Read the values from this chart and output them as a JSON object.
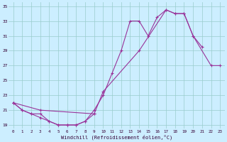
{
  "bg_color": "#cceeff",
  "grid_color": "#99cccc",
  "line_color": "#993399",
  "xlim": [
    -0.5,
    23.5
  ],
  "ylim": [
    18.5,
    35.5
  ],
  "xticks": [
    0,
    1,
    2,
    3,
    4,
    5,
    6,
    7,
    8,
    9,
    10,
    11,
    12,
    13,
    14,
    15,
    16,
    17,
    18,
    19,
    20,
    21,
    22,
    23
  ],
  "yticks": [
    19,
    21,
    23,
    25,
    27,
    29,
    31,
    33,
    35
  ],
  "xlabel": "Windchill (Refroidissement éolien,°C)",
  "series": [
    {
      "x": [
        0,
        1,
        2,
        3,
        4,
        5,
        6,
        7,
        8,
        9,
        10,
        11,
        12,
        13,
        14,
        15,
        16,
        17,
        18,
        19,
        20,
        21
      ],
      "y": [
        22.0,
        21.0,
        20.5,
        20.5,
        19.5,
        19.0,
        19.0,
        19.0,
        19.5,
        21.0,
        23.0,
        26.0,
        29.0,
        33.0,
        33.0,
        31.0,
        33.5,
        34.5,
        34.0,
        34.0,
        31.0,
        29.5
      ]
    },
    {
      "x": [
        0,
        1,
        2,
        3,
        4,
        5,
        6,
        7,
        8,
        9
      ],
      "y": [
        22.0,
        21.0,
        20.5,
        20.0,
        19.5,
        19.0,
        19.0,
        19.0,
        19.5,
        20.5
      ]
    },
    {
      "x": [
        0,
        3,
        9,
        10,
        14,
        17,
        18,
        19,
        20,
        22,
        23
      ],
      "y": [
        22.0,
        21.0,
        20.5,
        23.5,
        29.0,
        34.5,
        34.0,
        34.0,
        31.0,
        27.0,
        27.0
      ]
    }
  ]
}
